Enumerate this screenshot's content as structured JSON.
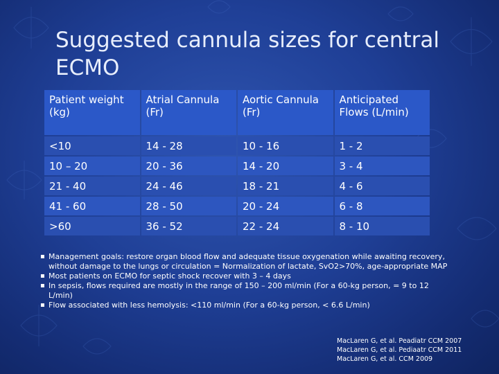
{
  "slide": {
    "title": "Suggested cannula sizes for central ECMO",
    "colors": {
      "background": "#1f3f96",
      "header_row": "#2b58c8",
      "body_row": "#2a4fb0"
    }
  },
  "table": {
    "headers": [
      "Patient weight (kg)",
      "Atrial Cannula (Fr)",
      "Aortic Cannula (Fr)",
      "Anticipated Flows (L/min)"
    ],
    "rows": [
      [
        "<10",
        "14 - 28",
        "10 - 16",
        "1 - 2"
      ],
      [
        "10 – 20",
        "20 - 36",
        "14 - 20",
        "3 - 4"
      ],
      [
        "21 - 40",
        "24 - 46",
        "18 - 21",
        "4 - 6"
      ],
      [
        "41 - 60",
        "28 - 50",
        "20 - 24",
        "6 - 8"
      ],
      [
        ">60",
        "36 - 52",
        "22 - 24",
        "8 - 10"
      ]
    ]
  },
  "notes": [
    "Management goals: restore organ blood flow and adequate tissue oxygenation while awaiting recovery, without damage to the lungs or circulation = Normalization of lactate, SvO2>70%, age-appropriate MAP",
    "Most patients on ECMO for septic shock recover with 3 – 4 days",
    "In sepsis, flows required are mostly in the range of 150 – 200 ml/min (For a 60-kg person, = 9 to 12 L/min)",
    "Flow associated with less hemolysis: <110 ml/min (For a 60-kg person, < 6.6 L/min)"
  ],
  "references": [
    "MacLaren G, et al. Peadiatr CCM 2007",
    "MacLaren G, et al. Pediaatr CCM 2011",
    "MacLaren G, et al. CCM 2009"
  ]
}
